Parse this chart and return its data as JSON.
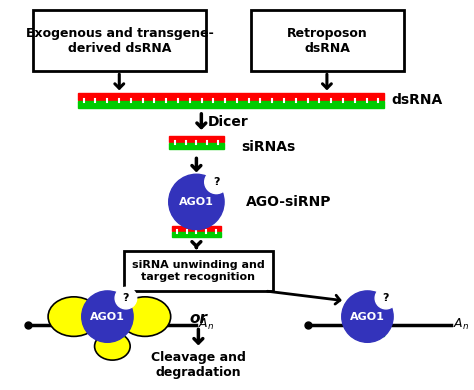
{
  "bg_color": "#ffffff",
  "box1_text": "Exogenous and transgene-\nderived dsRNA",
  "box2_text": "Retroposon\ndsRNA",
  "dsrna_label": "dsRNA",
  "dicer_label": "Dicer",
  "sirna_label": "siRNAs",
  "ago_sirnp_label": "AGO-siRNP",
  "ago1_label": "AGO1",
  "unwinding_label": "siRNA unwinding and\ntarget recognition",
  "or_label": "or",
  "cleavage_label": "Cleavage and\ndegradation",
  "red_color": "#ff0000",
  "green_color": "#00cc00",
  "blue_color": "#3333bb",
  "yellow_color": "#ffff00",
  "black_color": "#000000",
  "white_color": "#ffffff"
}
